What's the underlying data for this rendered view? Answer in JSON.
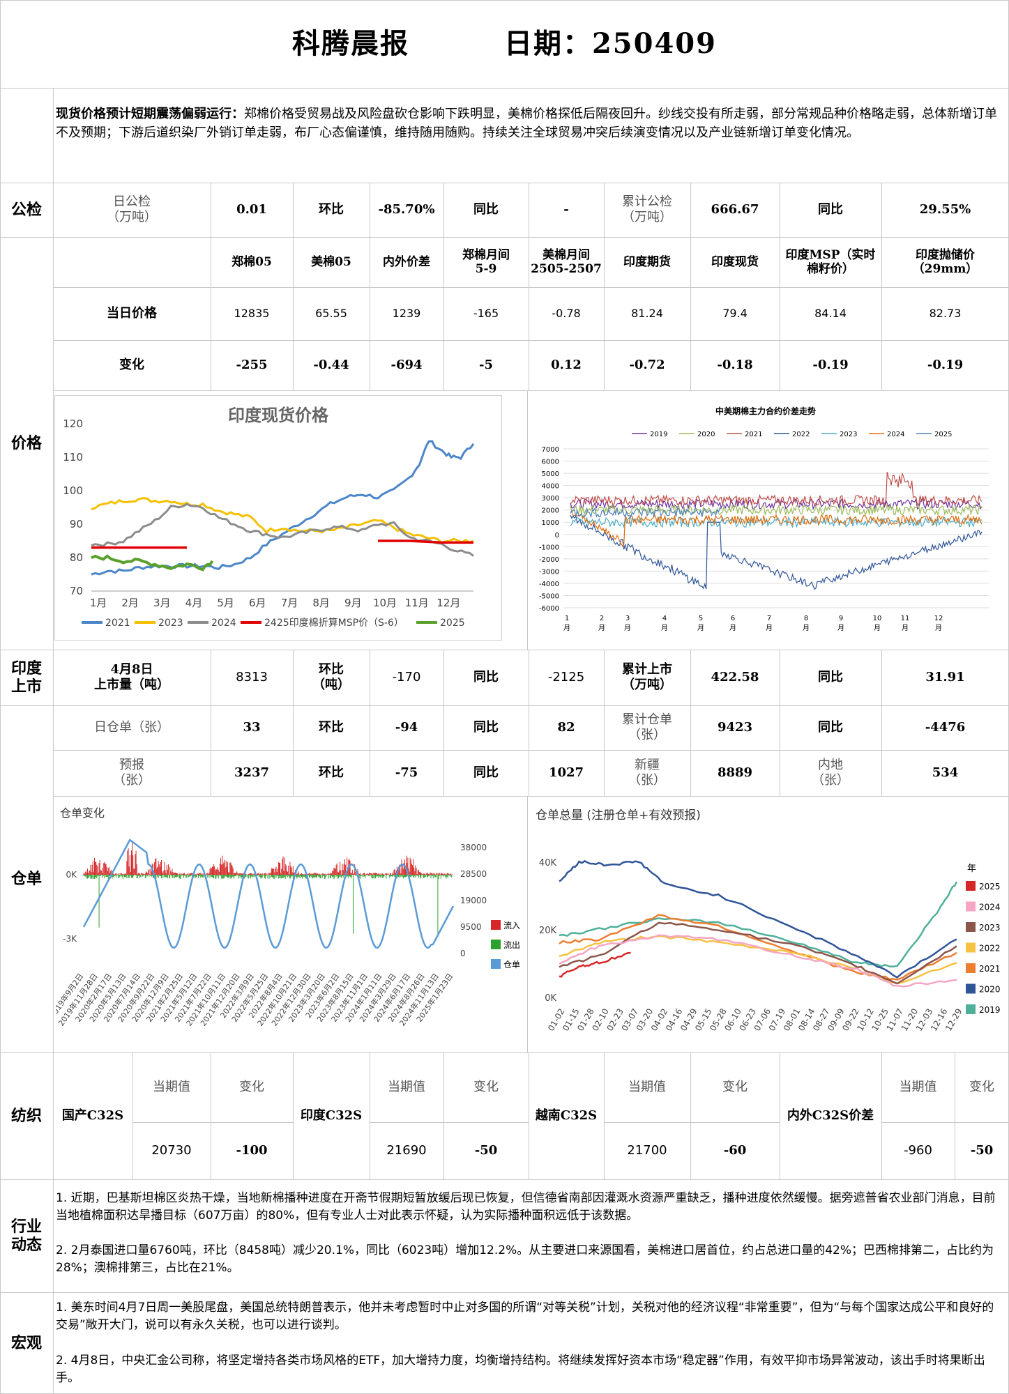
{
  "header": {
    "name": "科腾晨报",
    "date": "日期：250409"
  },
  "summary": {
    "lead": "现货价格预计短期震荡偏弱运行：",
    "text": "郑棉价格受贸易战及风险盘砍仓影响下跌明显，美棉价格探低后隔夜回升。纱线交投有所走弱，部分常规品种价格略走弱，总体新增订单不及预期；下游后道织染厂外销订单走弱，布厂心态偏谨慎，维持随用随购。持续关注全球贸易冲突后续演变情况以及产业链新增订单变化情况。"
  },
  "sections": {
    "gongjian": "公检",
    "price": "价格",
    "india1": "印度",
    "india2": "上市",
    "cangdan": "仓单",
    "fangzhi": "纺织",
    "hangye1": "行业",
    "hangye2": "动态",
    "hongguan": "宏观"
  },
  "gongjian": {
    "daily_label1": "日公检",
    "daily_label2": "（万吨）",
    "daily": "0.01",
    "hb_label": "环比",
    "hb": "-85.70%",
    "tb_label": "同比",
    "tb": "-",
    "cum_label1": "累计公检",
    "cum_label2": "（万吨）",
    "cum": "666.67",
    "cum_tb_label": "同比",
    "cum_tb": "29.55%"
  },
  "price_table": {
    "headers": [
      "郑棉05",
      "美棉05",
      "内外价差",
      "郑棉月间\n5-9",
      "美棉月间\n2505-2507",
      "印度期货",
      "印度现货",
      "印度MSP（实时\n棉籽价）",
      "印度抛储价\n（29mm）"
    ],
    "row1_label": "当日价格",
    "row1": [
      "12835",
      "65.55",
      "1239",
      "-165",
      "-0.78",
      "81.24",
      "79.4",
      "84.14",
      "82.73"
    ],
    "row2_label": "变化",
    "row2": [
      "-255",
      "-0.44",
      "-694",
      "-5",
      "0.12",
      "-0.72",
      "-0.18",
      "-0.19",
      "-0.19"
    ]
  },
  "india_market": {
    "label1": "4月8日",
    "label2": "上市量（吨）",
    "value": "8313",
    "hb_label1": "环比",
    "hb_label2": "（吨）",
    "hb": "-170",
    "tb_label": "同比",
    "tb": "-2125",
    "cum_label1": "累计上市",
    "cum_label2": "（万吨）",
    "cum": "422.58",
    "cum_tb_label": "同比",
    "cum_tb": "31.91"
  },
  "warehouse": {
    "r1": {
      "l1": "日仓单（张）",
      "v1": "33",
      "hb_label": "环比",
      "hb": "-94",
      "tb_label": "同比",
      "tb": "82",
      "l2a": "累计仓单",
      "l2b": "（张）",
      "v2": "9423",
      "tb2_label": "同比",
      "tb2": "-4476"
    },
    "r2": {
      "l1a": "预报",
      "l1b": "（张）",
      "v1": "3237",
      "hb_label": "环比",
      "hb": "-75",
      "tb_label": "同比",
      "tb": "1027",
      "l2a": "新疆",
      "l2b": "（张）",
      "v2": "8889",
      "l3a": "内地",
      "l3b": "（张）",
      "v3": "534"
    }
  },
  "textile": {
    "cur_label": "当期值",
    "chg_label": "变化",
    "items": [
      {
        "name": "国产C32S",
        "cur": "20730",
        "chg": "-100"
      },
      {
        "name": "印度C32S",
        "cur": "21690",
        "chg": "-50"
      },
      {
        "name": "越南C32S",
        "cur": "21700",
        "chg": "-60"
      },
      {
        "name": "内外C32S价差",
        "cur": "-960",
        "chg": "-50"
      }
    ]
  },
  "industry": {
    "p1": "1. 近期，巴基斯坦棉区炎热干燥，当地新棉播种进度在开斋节假期短暂放缓后现已恢复，但信德省南部因灌溉水资源严重缺乏，播种进度依然缓慢。据旁遮普省农业部门消息，目前当地植棉面积达旱播目标（607万亩）的80%，但有专业人士对此表示怀疑，认为实际播种面积远低于该数据。",
    "p2": "2. 2月泰国进口量6760吨，环比（8458吨）减少20.1%，同比（6023吨）增加12.2%。从主要进口来源国看，美棉进口居首位，约占总进口量的42%；巴西棉排第二，占比约为28%；澳棉排第三，占比在21%。"
  },
  "macro": {
    "p1": "1. 美东时间4月7日周一美股尾盘，美国总统特朗普表示，他并未考虑暂时中止对多国的所谓“对等关税”计划，关税对他的经济议程“非常重要”，但为“与每个国家达成公平和良好的交易”敞开大门，说可以有永久关税，也可以进行谈判。",
    "p2": "2. 4月8日，中央汇金公司称，将坚定增持各类市场风格的ETF，加大增持力度，均衡增持结构。将继续发挥好资本市场“稳定器”作用，有效平抑市场异常波动，该出手时将果断出手。"
  },
  "chart_data": [
    {
      "type": "line",
      "title": "印度现货价格",
      "categories": [
        "1月",
        "2月",
        "3月",
        "4月",
        "5月",
        "6月",
        "7月",
        "8月",
        "9月",
        "10月",
        "11月",
        "12月"
      ],
      "ylim": [
        70,
        120
      ],
      "yticks": [
        70,
        80,
        90,
        100,
        110,
        120
      ],
      "legend": "bottom",
      "colors": {
        "2021": "#4a86c8",
        "2023": "#f5c000",
        "2024": "#8c8c8c",
        "2425": "#5aa02c",
        "2025": "#e00000"
      },
      "series": [
        {
          "name": "2021",
          "x": [
            0,
            0.5,
            1,
            1.5,
            2,
            2.5,
            3,
            3.5,
            4,
            4.5,
            5,
            5.5,
            6,
            6.5,
            7,
            7.5,
            8,
            8.5,
            9,
            9.5,
            10,
            10.3,
            10.6,
            11,
            11.3,
            11.6,
            12
          ],
          "values": [
            75,
            76,
            76,
            77,
            77.5,
            77.5,
            77.5,
            77.5,
            77,
            78,
            80,
            84,
            87,
            90,
            93,
            96,
            98,
            99,
            98,
            100,
            104,
            108,
            115,
            112,
            110,
            110,
            114
          ]
        },
        {
          "name": "2023",
          "x": [
            0,
            0.5,
            1,
            1.5,
            2,
            2.5,
            3,
            3.5,
            4,
            4.5,
            5,
            5.5,
            6,
            6.5,
            7,
            7.5,
            8,
            8.5,
            9,
            9.5,
            10,
            10.5,
            11,
            11.5,
            12
          ],
          "values": [
            95,
            96,
            97,
            97.5,
            97,
            97,
            96,
            96,
            94,
            93,
            92,
            88,
            89,
            88,
            88,
            88,
            89,
            90,
            91,
            89,
            87,
            86,
            85,
            85,
            85
          ]
        },
        {
          "name": "2024",
          "x": [
            0,
            0.5,
            1,
            1.5,
            2,
            2.5,
            3,
            3.5,
            4,
            4.5,
            5,
            5.5,
            6,
            6.5,
            7,
            7.5,
            8,
            8.5,
            9,
            9.5,
            10,
            10.5,
            11,
            11.5,
            12
          ],
          "values": [
            84,
            84,
            85,
            88,
            91,
            95,
            96,
            95,
            92,
            90,
            88,
            87,
            86,
            87,
            88,
            89,
            89,
            88,
            90,
            90,
            86,
            85,
            84,
            82,
            80.5
          ]
        },
        {
          "name": "2425印度棉折算MSP价（S-6）",
          "x": [
            0,
            1,
            2,
            3,
            9,
            10,
            11,
            12
          ],
          "values": [
            83,
            83,
            83,
            83,
            85,
            85,
            84.5,
            84.5
          ]
        },
        {
          "name": "2025",
          "x": [
            0,
            0.5,
            1,
            1.5,
            2,
            2.5,
            3,
            3.5,
            3.8
          ],
          "values": [
            80,
            80,
            79,
            79,
            78,
            77,
            78,
            77,
            79
          ]
        }
      ]
    },
    {
      "type": "line",
      "title": "中美期棉主力合约价差走势",
      "categories": [
        "1\n月",
        "2\n月",
        "3\n月",
        "4\n月",
        "5\n月",
        "6\n月",
        "7\n月",
        "8\n月",
        "9\n月",
        "10\n月",
        "11\n月",
        "12\n月"
      ],
      "ylim": [
        -6000,
        7000
      ],
      "yticks": [
        -6000,
        -5000,
        -4000,
        -3000,
        -2000,
        -1000,
        0,
        1000,
        2000,
        3000,
        4000,
        5000,
        6000,
        7000
      ],
      "legend": "top",
      "series_names": [
        "2019",
        "2020",
        "2021",
        "2022",
        "2023",
        "2024",
        "2025"
      ],
      "colors": {
        "2019": "#7030a0",
        "2020": "#9bbb59",
        "2021": "#c0504d",
        "2022": "#2f5597",
        "2023": "#4bacc6",
        "2024": "#e36c09",
        "2025": "#4f81bd"
      }
    },
    {
      "type": "bar",
      "title": "仓单变化",
      "legend": "right",
      "left_ticks": [
        "0K",
        "-3K"
      ],
      "right_ticks": [
        "38000",
        "28500",
        "19000",
        "9500",
        "0"
      ],
      "legend_items": [
        "流入",
        "流出",
        "仓单"
      ],
      "colors": {
        "流入": "#d62728",
        "流出": "#2ca02c",
        "仓单": "#5b9bd5"
      },
      "x_labels": [
        "2019年9月2日",
        "2019年11月28日",
        "2020年2月17日",
        "2020年5月13日",
        "2020年7月14日",
        "2020年9月22日",
        "2020年12月9日",
        "2021年2月25日",
        "2021年5月12日",
        "2021年7月22日",
        "2021年10月11日",
        "2021年12月20日",
        "2022年3月9日",
        "2022年5月25日",
        "2022年8月4日",
        "2022年10月21日",
        "2022年12月30日",
        "2023年3月20日",
        "2023年6月2日",
        "2023年8月15日",
        "2023年11月1日",
        "2024年1月11日",
        "2024年3月29日",
        "2024年6月17日",
        "2024年8月26日",
        "2024年11月13日",
        "2025年1月23日"
      ]
    },
    {
      "type": "line",
      "title": "仓单总量 (注册仓单+有效预报)",
      "yticks": [
        "0K",
        "20K",
        "40K"
      ],
      "legend_title": "年",
      "legend": "right",
      "series_names": [
        "2025",
        "2024",
        "2023",
        "2022",
        "2021",
        "2020",
        "2019"
      ],
      "colors": {
        "2025": "#d62728",
        "2024": "#f4a6c4",
        "2023": "#8c564b",
        "2022": "#f5c242",
        "2021": "#ed7d31",
        "2020": "#2f5597",
        "2019": "#4fb09a"
      },
      "x_labels": [
        "01-02",
        "01-15",
        "01-28",
        "02-10",
        "02-23",
        "03-07",
        "03-20",
        "04-02",
        "04-16",
        "04-29",
        "05-15",
        "05-28",
        "06-10",
        "06-23",
        "07-06",
        "07-19",
        "08-01",
        "08-14",
        "08-27",
        "09-09",
        "09-22",
        "10-12",
        "10-25",
        "11-07",
        "11-20",
        "12-03",
        "12-16",
        "12-29"
      ]
    }
  ]
}
